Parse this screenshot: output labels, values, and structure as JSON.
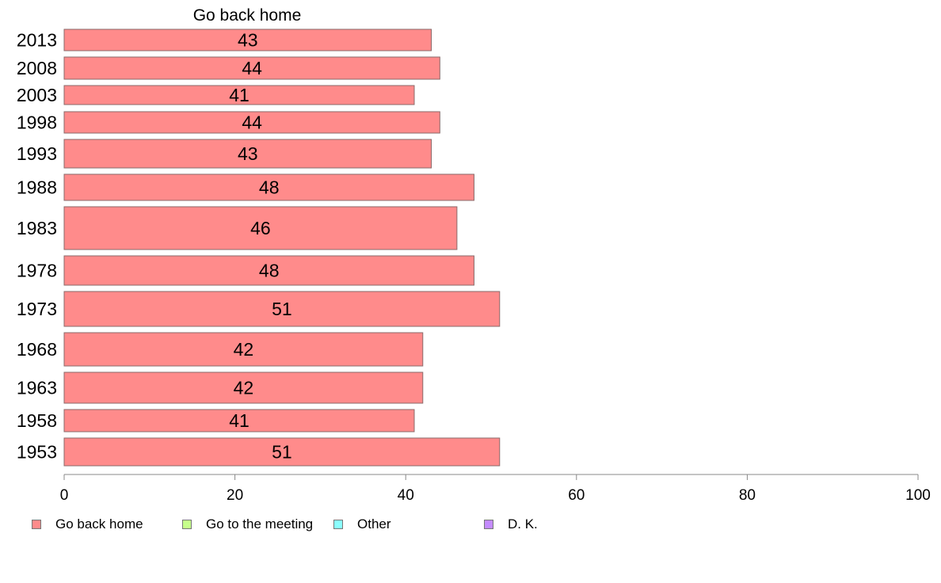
{
  "chart_data": {
    "type": "bar",
    "orientation": "horizontal",
    "title": "Go back home",
    "categories": [
      "2013",
      "2008",
      "2003",
      "1998",
      "1993",
      "1988",
      "1983",
      "1978",
      "1973",
      "1968",
      "1963",
      "1958",
      "1953"
    ],
    "series": [
      {
        "name": "Go back home",
        "color": "#ff8b8b",
        "values": [
          43,
          44,
          41,
          44,
          43,
          48,
          46,
          48,
          51,
          42,
          42,
          41,
          51
        ],
        "labels": [
          "43",
          "44",
          "41",
          "44",
          "43",
          "48",
          "46",
          "48",
          "51",
          "42",
          "42",
          "41",
          "51"
        ]
      }
    ],
    "xlim": [
      0,
      100
    ],
    "xticks": [
      "0",
      "20",
      "40",
      "60",
      "80",
      "100"
    ],
    "grid": false,
    "legend_position": "bottom"
  },
  "legend": [
    {
      "label": "Go back home",
      "color": "#ff8b8b"
    },
    {
      "label": "Go to the meeting",
      "color": "#c6ff8b"
    },
    {
      "label": "Other",
      "color": "#8bffff"
    },
    {
      "label": "D. K.",
      "color": "#c48bff"
    }
  ]
}
